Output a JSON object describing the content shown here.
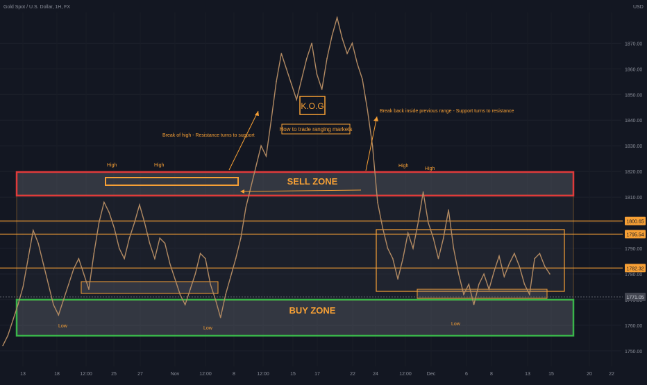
{
  "header": {
    "symbol_title": "Gold Spot / U.S. Dollar, 1H, FX",
    "currency": "USD"
  },
  "colors": {
    "background": "#131722",
    "candle": "#b38b63",
    "annotation": "#f7a035",
    "sell_zone": "#e03a3a",
    "buy_zone": "#39b54a",
    "axis_text": "#8a8e99",
    "price_tag": "#f7a035",
    "last_price_tag": "#434651"
  },
  "chart_data": {
    "type": "line",
    "title": "K.O.G",
    "subtitle": "How to trade ranging markets",
    "x_ticks": [
      "13",
      "18",
      "12:00",
      "25",
      "27",
      "Nov",
      "12:00",
      "8",
      "12:00",
      "15",
      "17",
      "22",
      "24",
      "12:00",
      "Dec",
      "6",
      "8",
      "13",
      "15",
      "20",
      "22"
    ],
    "y_ticks": [
      1870,
      1860,
      1850,
      1840,
      1830,
      1820,
      1810,
      1800,
      1790,
      1780,
      1770,
      1760,
      1750
    ],
    "y_tick_labels": [
      "1870.00",
      "1860.00",
      "1850.00",
      "1840.00",
      "1830.00",
      "1820.00",
      "1810.00",
      "1800.00",
      "1790.00",
      "1780.00",
      "1770.00",
      "1760.00",
      "1750.00"
    ],
    "ylim": [
      1744,
      1882
    ],
    "series": [
      {
        "values": [
          1752,
          1756,
          1762,
          1768,
          1775,
          1786,
          1797,
          1792,
          1784,
          1776,
          1768,
          1764,
          1770,
          1776,
          1782,
          1786,
          1780,
          1774,
          1788,
          1800,
          1808,
          1804,
          1798,
          1790,
          1786,
          1794,
          1800,
          1807,
          1800,
          1792,
          1786,
          1794,
          1792,
          1784,
          1778,
          1772,
          1768,
          1774,
          1780,
          1788,
          1786,
          1776,
          1770,
          1763,
          1772,
          1779,
          1786,
          1794,
          1806,
          1814,
          1822,
          1830,
          1826,
          1840,
          1855,
          1866,
          1860,
          1854,
          1848,
          1856,
          1864,
          1870,
          1858,
          1852,
          1864,
          1873,
          1880,
          1872,
          1866,
          1870,
          1862,
          1856,
          1844,
          1830,
          1808,
          1798,
          1790,
          1786,
          1778,
          1786,
          1796,
          1790,
          1800,
          1812,
          1800,
          1794,
          1786,
          1794,
          1805,
          1790,
          1780,
          1772,
          1776,
          1768,
          1776,
          1780,
          1774,
          1781,
          1787,
          1779,
          1784,
          1788,
          1783,
          1776,
          1772,
          1786,
          1788,
          1783,
          1780
        ]
      }
    ],
    "price_levels": [
      {
        "value": 1800.65,
        "label": "1800.65"
      },
      {
        "value": 1795.54,
        "label": "1795.54"
      },
      {
        "value": 1782.32,
        "label": "1782.32"
      }
    ],
    "last_price": {
      "value": 1771.05,
      "label": "1771.05"
    },
    "zones": [
      {
        "name": "SELL ZONE",
        "low": 1806.5,
        "high": 1813.0
      },
      {
        "name": "BUY ZONE",
        "low": 1756.0,
        "high": 1766.0
      }
    ],
    "annotations": {
      "break_high_text": "Break of high - Resistance turns to support",
      "break_back_text": "Break back inside previous range - Support turns to resistance",
      "high_labels": [
        "High",
        "High",
        "High",
        "High"
      ],
      "low_labels": [
        "Low",
        "Low",
        "Low"
      ]
    }
  }
}
